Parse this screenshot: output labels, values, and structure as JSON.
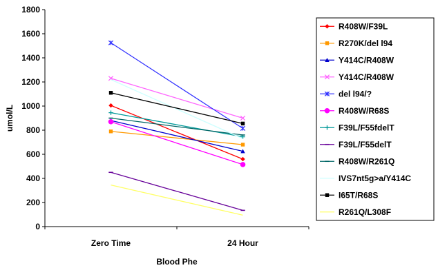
{
  "chart_data": {
    "type": "line",
    "title": "",
    "xlabel": "Blood Phe",
    "ylabel": "umol/L",
    "categories": [
      "Zero Time",
      "24 Hour"
    ],
    "ylim": [
      0,
      1800
    ],
    "yticks": [
      0,
      200,
      400,
      600,
      800,
      1000,
      1200,
      1400,
      1600,
      1800
    ],
    "grid": false,
    "legend_position": "right",
    "series": [
      {
        "name": "R408W/F39L",
        "values": [
          1005,
          560
        ],
        "color": "#ff0000",
        "marker": "diamond"
      },
      {
        "name": "R270K/del l94",
        "values": [
          790,
          680
        ],
        "color": "#ff9900",
        "marker": "square"
      },
      {
        "name": "Y414C/R408W",
        "values": [
          880,
          625
        ],
        "color": "#0000cc",
        "marker": "triangle"
      },
      {
        "name": "Y414C/R408W",
        "values": [
          1230,
          900
        ],
        "color": "#ff66ff",
        "marker": "x"
      },
      {
        "name": "del l94/?",
        "values": [
          1525,
          815
        ],
        "color": "#3333ff",
        "marker": "star"
      },
      {
        "name": "R408W/R68S",
        "values": [
          870,
          515
        ],
        "color": "#ff00ff",
        "marker": "circle"
      },
      {
        "name": "F39L/F55fdelT",
        "values": [
          945,
          745
        ],
        "color": "#009999",
        "marker": "plus"
      },
      {
        "name": "F39L/F55delT",
        "values": [
          450,
          135
        ],
        "color": "#660099",
        "marker": "dash"
      },
      {
        "name": "R408W/R261Q",
        "values": [
          900,
          760
        ],
        "color": "#006666",
        "marker": "dash"
      },
      {
        "name": "IVS7nt5g>a/Y414C",
        "values": [
          1220,
          730
        ],
        "color": "#ccffff",
        "marker": "none"
      },
      {
        "name": "I65T/R68S",
        "values": [
          1110,
          855
        ],
        "color": "#000000",
        "marker": "square"
      },
      {
        "name": "R261Q/L308F",
        "values": [
          345,
          95
        ],
        "color": "#ffff66",
        "marker": "none"
      }
    ]
  }
}
